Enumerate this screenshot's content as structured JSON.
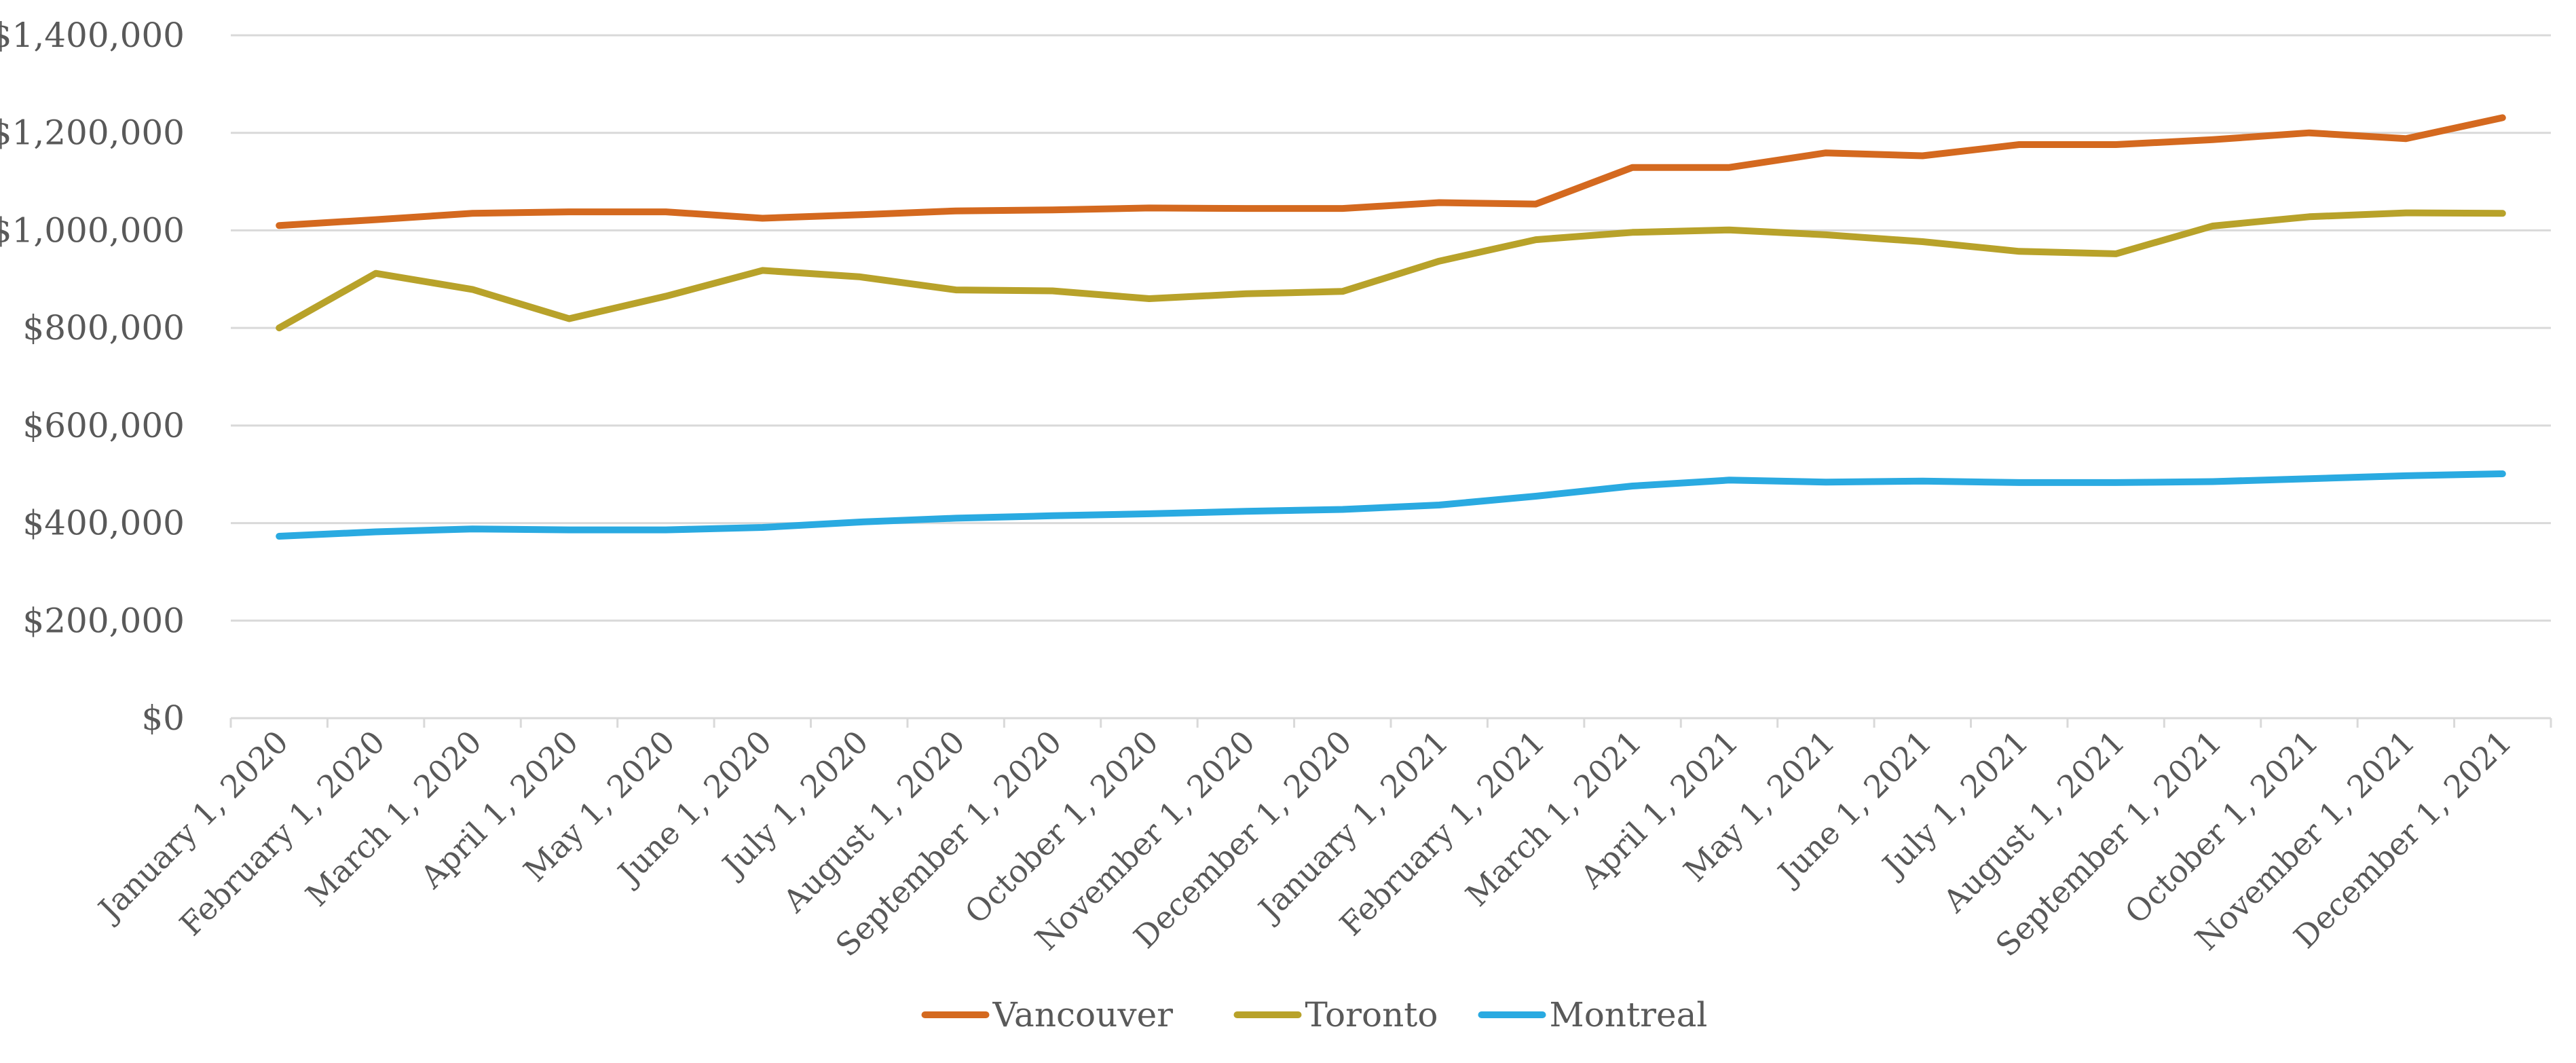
{
  "chart_data": {
    "type": "line",
    "title": "",
    "xlabel": "",
    "ylabel": "",
    "categories": [
      "January 1, 2020",
      "February 1, 2020",
      "March 1, 2020",
      "April 1, 2020",
      "May 1, 2020",
      "June 1, 2020",
      "July 1, 2020",
      "August 1, 2020",
      "September 1, 2020",
      "October 1, 2020",
      "November 1, 2020",
      "December 1, 2020",
      "January 1, 2021",
      "February 1, 2021",
      "March 1, 2021",
      "April 1, 2021",
      "May 1, 2021",
      "June 1, 2021",
      "July 1, 2021",
      "August 1, 2021",
      "September 1, 2021",
      "October 1, 2021",
      "November 1, 2021",
      "December 1, 2021"
    ],
    "ylim": [
      0,
      1400000
    ],
    "y_ticks": [
      0,
      200000,
      400000,
      600000,
      800000,
      1000000,
      1200000,
      1400000
    ],
    "y_tick_labels": [
      "$0",
      "$200,000",
      "$400,000",
      "$600,000",
      "$800,000",
      "$1,000,000",
      "$1,200,000",
      "$1,400,000"
    ],
    "grid": true,
    "legend_position": "bottom",
    "series": [
      {
        "name": "Vancouver",
        "color": "#d4691f",
        "values": [
          1010000,
          1022000,
          1035000,
          1038000,
          1038000,
          1025000,
          1032000,
          1040000,
          1042000,
          1046000,
          1045000,
          1045000,
          1057000,
          1054000,
          1129000,
          1129000,
          1159000,
          1153000,
          1176000,
          1176000,
          1186000,
          1200000,
          1188000,
          1231000
        ]
      },
      {
        "name": "Toronto",
        "color": "#b8a22a",
        "values": [
          800000,
          912000,
          879000,
          819000,
          865000,
          918000,
          905000,
          878000,
          876000,
          860000,
          870000,
          875000,
          937000,
          981000,
          996000,
          1001000,
          991000,
          977000,
          957000,
          952000,
          1009000,
          1028000,
          1036000,
          1035000
        ]
      },
      {
        "name": "Montreal",
        "color": "#2aaae1",
        "values": [
          373000,
          382000,
          388000,
          386000,
          386000,
          391000,
          402000,
          410000,
          415000,
          419000,
          424000,
          428000,
          437000,
          455000,
          476000,
          488000,
          484000,
          486000,
          483000,
          483000,
          485000,
          491000,
          497000,
          501000
        ]
      }
    ]
  }
}
